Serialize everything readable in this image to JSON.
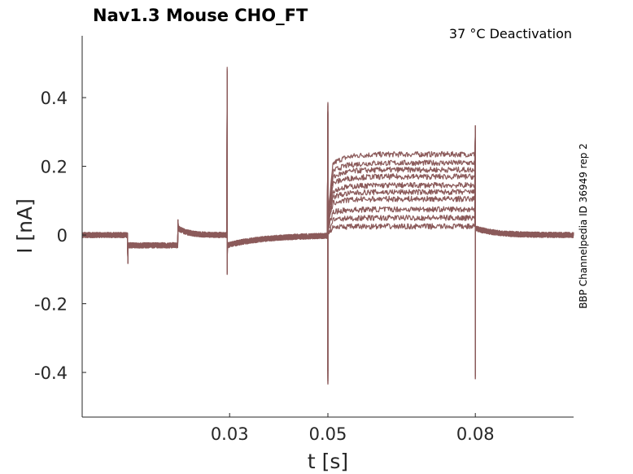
{
  "chart_data": {
    "type": "line",
    "title": "Nav1.3  Mouse  CHO_FT",
    "annotation": "37 °C  Deactivation",
    "side_label": "BBP Channelpedia ID 36949 rep 2",
    "xlabel": "t [s]",
    "ylabel": "I [nA]",
    "xlim": [
      0,
      0.1
    ],
    "ylim": [
      -0.53,
      0.58
    ],
    "xticks": [
      0.03,
      0.05,
      0.08
    ],
    "xtick_labels": [
      "0.03",
      "0.05",
      "0.08"
    ],
    "yticks": [
      0.4,
      0.2,
      0,
      -0.2,
      -0.4
    ],
    "ytick_labels": [
      "0.4",
      "0.2",
      "0",
      "-0.2",
      "-0.4"
    ],
    "grid": false,
    "trace_color": "#8b5a5a",
    "sweeps": [
      {
        "name": "",
        "steady_current": 0.235
      },
      {
        "name": "",
        "steady_current": 0.21
      },
      {
        "name": "",
        "steady_current": 0.19
      },
      {
        "name": "",
        "steady_current": 0.17
      },
      {
        "name": "",
        "steady_current": 0.145
      },
      {
        "name": "",
        "steady_current": 0.125
      },
      {
        "name": "",
        "steady_current": 0.105
      },
      {
        "name": "",
        "steady_current": 0.075
      },
      {
        "name": "",
        "steady_current": 0.05
      },
      {
        "name": "",
        "steady_current": 0.025
      }
    ],
    "protocol_segments": [
      {
        "t_start": 0.0,
        "t_end": 0.0093,
        "current": 0.0
      },
      {
        "t_start": 0.0093,
        "t_end": 0.0195,
        "current": -0.03
      },
      {
        "t_start": 0.0195,
        "t_end": 0.0295,
        "current": 0.0
      },
      {
        "t_start": 0.0295,
        "t_end": 0.05,
        "current": 0.0
      },
      {
        "t_start": 0.05,
        "t_end": 0.08,
        "current": "sweep"
      },
      {
        "t_start": 0.08,
        "t_end": 0.1,
        "current": 0.0
      }
    ],
    "transients": [
      {
        "t": 0.0093,
        "peak": -0.085
      },
      {
        "t": 0.0195,
        "peak": 0.045
      },
      {
        "t": 0.0295,
        "peak": 0.49
      },
      {
        "t": 0.0295,
        "peak": -0.115
      },
      {
        "t": 0.05,
        "peak": 0.39
      },
      {
        "t": 0.05,
        "peak": -0.435
      },
      {
        "t": 0.08,
        "peak": 0.32
      },
      {
        "t": 0.08,
        "peak": -0.42
      }
    ]
  }
}
